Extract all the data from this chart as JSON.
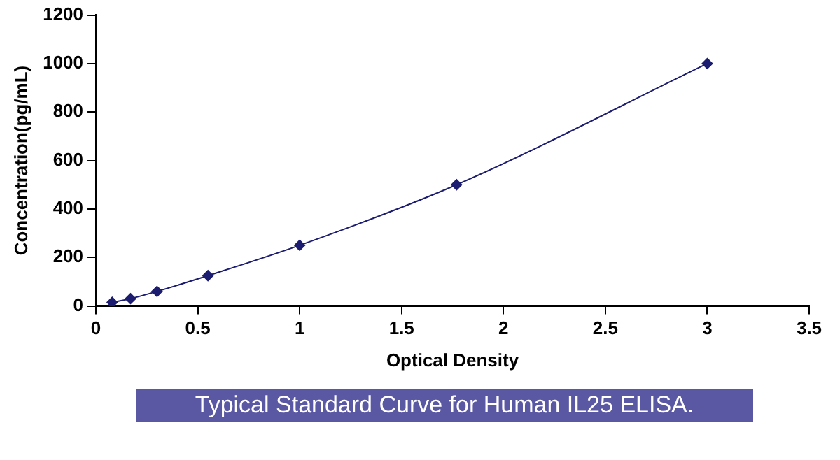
{
  "chart_data": {
    "type": "line",
    "xlabel": "Optical Density",
    "ylabel": "Concentration(pg/mL)",
    "x": [
      0.08,
      0.17,
      0.3,
      0.55,
      1.0,
      1.77,
      3.0
    ],
    "values": [
      15,
      30,
      60,
      125,
      250,
      500,
      1000
    ],
    "color": "#1c1c70",
    "marker": "diamond",
    "line_style": "solid",
    "grid": false,
    "legend": false,
    "xlim": [
      0,
      3.5
    ],
    "xticks": [
      0,
      0.5,
      1,
      1.5,
      2,
      2.5,
      3,
      3.5
    ],
    "ylim": [
      0,
      1200
    ],
    "yticks": [
      0,
      200,
      400,
      600,
      800,
      1000,
      1200
    ],
    "annotations": [
      "Typical Standard Curve for Human IL25 ELISA."
    ]
  }
}
